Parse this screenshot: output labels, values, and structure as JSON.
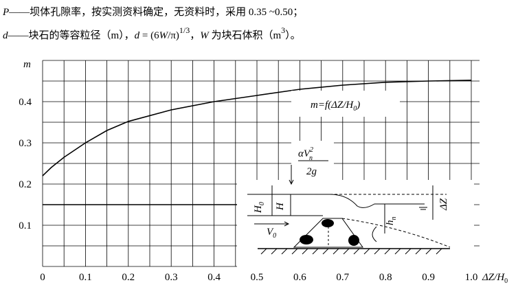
{
  "text_lines": [
    [
      "P",
      "——坝体孔隙率，按实测资料确定，无资料时，采用 0.35 ~0.50；"
    ],
    [
      "d",
      "——块石的等容粒径（m），",
      "d",
      " = (6",
      "W",
      "/π)",
      "1/3",
      "，",
      "W",
      " 为块石体积（m",
      "3",
      "）。"
    ]
  ],
  "chart_data": {
    "type": "line",
    "x_label": [
      "ΔZ/H",
      "0"
    ],
    "y_label": "m",
    "annotation": [
      "m=f(ΔZ/H",
      "0",
      ")"
    ],
    "xlim": [
      0,
      1
    ],
    "ylim": [
      0,
      0.5
    ],
    "xticks": [
      0,
      0.1,
      0.2,
      0.3,
      0.4,
      0.5,
      0.6,
      0.7,
      0.8,
      0.9,
      {
        "value": 1,
        "label": "1.0"
      }
    ],
    "yticks": [
      0.1,
      0.2,
      0.3,
      0.4
    ],
    "xgrid": [
      0,
      0.05,
      0.1,
      0.15,
      0.2,
      0.25,
      0.3,
      0.35,
      0.4,
      0.45,
      0.5,
      0.55,
      0.6,
      0.65,
      0.7,
      0.75,
      0.8,
      0.85,
      0.9,
      0.95,
      1
    ],
    "ygrid": [
      0.05,
      0.1,
      0.15,
      0.2,
      0.25,
      0.3,
      0.35,
      0.4,
      0.45,
      0.5
    ],
    "series": [
      {
        "color": "#000000",
        "x": [
          0,
          0.02,
          0.05,
          0.1,
          0.15,
          0.2,
          0.3,
          0.4,
          0.5,
          0.6,
          0.7,
          0.8,
          0.9,
          1
        ],
        "values": [
          0.22,
          0.24,
          0.265,
          0.3,
          0.33,
          0.352,
          0.38,
          0.4,
          0.415,
          0.43,
          0.44,
          0.447,
          0.45,
          0.452
        ]
      },
      {
        "color": "#000000",
        "x": [
          0,
          1
        ],
        "values": [
          0.15,
          0.15
        ]
      }
    ]
  },
  "diagram": {
    "velocity_head": [
      "αV",
      "2",
      "n",
      "2g"
    ],
    "h0": [
      "H",
      "0"
    ],
    "h": "H",
    "v0": [
      "V",
      "0"
    ],
    "hn": [
      "h",
      "n"
    ],
    "dz": "ΔZ"
  }
}
